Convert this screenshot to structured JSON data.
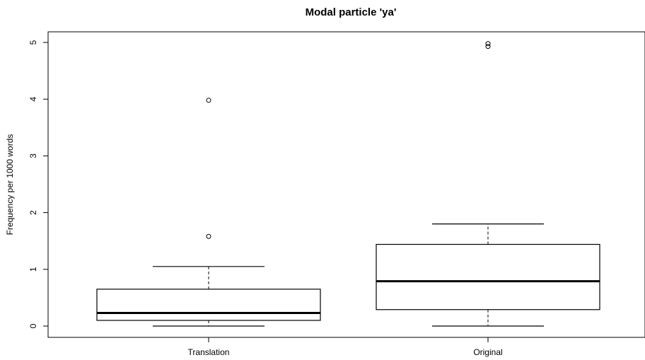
{
  "chart_data": {
    "type": "boxplot",
    "title": "Modal particle 'ya'",
    "xlabel": "",
    "ylabel": "Frequency per 1000 words",
    "ylim": [
      0,
      5
    ],
    "yticks": [
      "0",
      "1",
      "2",
      "3",
      "4",
      "5"
    ],
    "categories": [
      "Translation",
      "Original"
    ],
    "boxes": [
      {
        "category": "Translation",
        "whisker_low": 0.0,
        "q1": 0.1,
        "median": 0.23,
        "q3": 0.65,
        "whisker_high": 1.05,
        "outliers": [
          1.58,
          3.98
        ]
      },
      {
        "category": "Original",
        "whisker_low": 0.0,
        "q1": 0.29,
        "median": 0.79,
        "q3": 1.44,
        "whisker_high": 1.8,
        "outliers": [
          4.93,
          4.98
        ]
      }
    ],
    "grid": false,
    "legend": "none"
  }
}
